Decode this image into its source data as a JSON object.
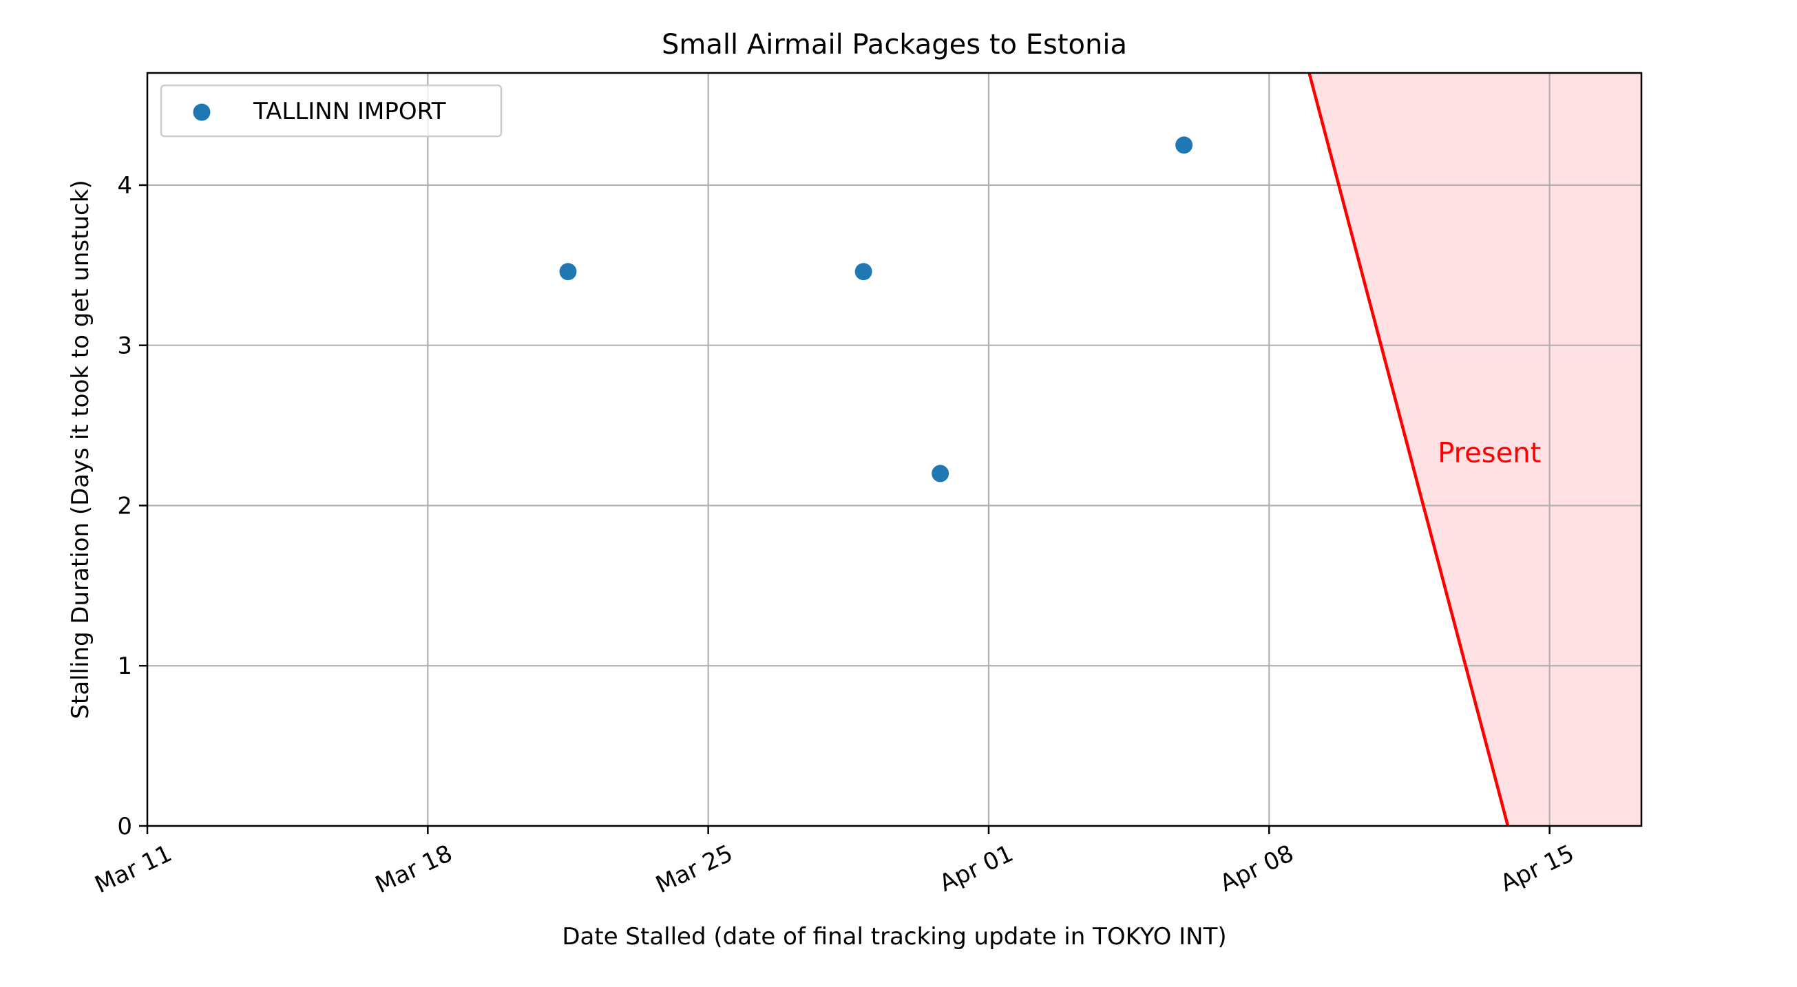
{
  "chart_data": {
    "type": "scatter",
    "title": "Small Airmail Packages to Estonia",
    "xlabel": "Date Stalled (date of final tracking update in TOKYO INT)",
    "ylabel": "Stalling Duration (Days it took to get unstuck)",
    "x_axis_type": "date",
    "xlim": [
      "2024-03-11",
      "2024-04-17T07:00"
    ],
    "ylim": [
      0,
      4.7
    ],
    "x_ticks": [
      {
        "date": "2024-03-11",
        "label": "Mar 11"
      },
      {
        "date": "2024-03-18",
        "label": "Mar 18"
      },
      {
        "date": "2024-03-25",
        "label": "Mar 25"
      },
      {
        "date": "2024-04-01",
        "label": "Apr 01"
      },
      {
        "date": "2024-04-08",
        "label": "Apr 08"
      },
      {
        "date": "2024-04-15",
        "label": "Apr 15"
      }
    ],
    "y_ticks": [
      {
        "value": 0,
        "label": "0"
      },
      {
        "value": 1,
        "label": "1"
      },
      {
        "value": 2,
        "label": "2"
      },
      {
        "value": 3,
        "label": "3"
      },
      {
        "value": 4,
        "label": "4"
      }
    ],
    "grid": true,
    "legend_position": "top-left",
    "series": [
      {
        "name": "TALLINN IMPORT",
        "color": "#1f77b4",
        "points": [
          {
            "x": "2024-03-21T12:00",
            "y": 3.46
          },
          {
            "x": "2024-03-28T21:00",
            "y": 3.46
          },
          {
            "x": "2024-03-30T19:00",
            "y": 2.2
          },
          {
            "x": "2024-04-05T21:00",
            "y": 4.25
          }
        ]
      }
    ],
    "present_region": {
      "label": "Present",
      "line_color": "#ff0000",
      "fill_color": "#ffe0e3",
      "line_top": {
        "x": "2024-04-09T00:00",
        "y": 4.7
      },
      "line_bottom": {
        "x": "2024-04-13T23:00",
        "y": 0
      },
      "label_position": {
        "x": "2024-04-12T05:00",
        "y": 2.33
      }
    }
  }
}
